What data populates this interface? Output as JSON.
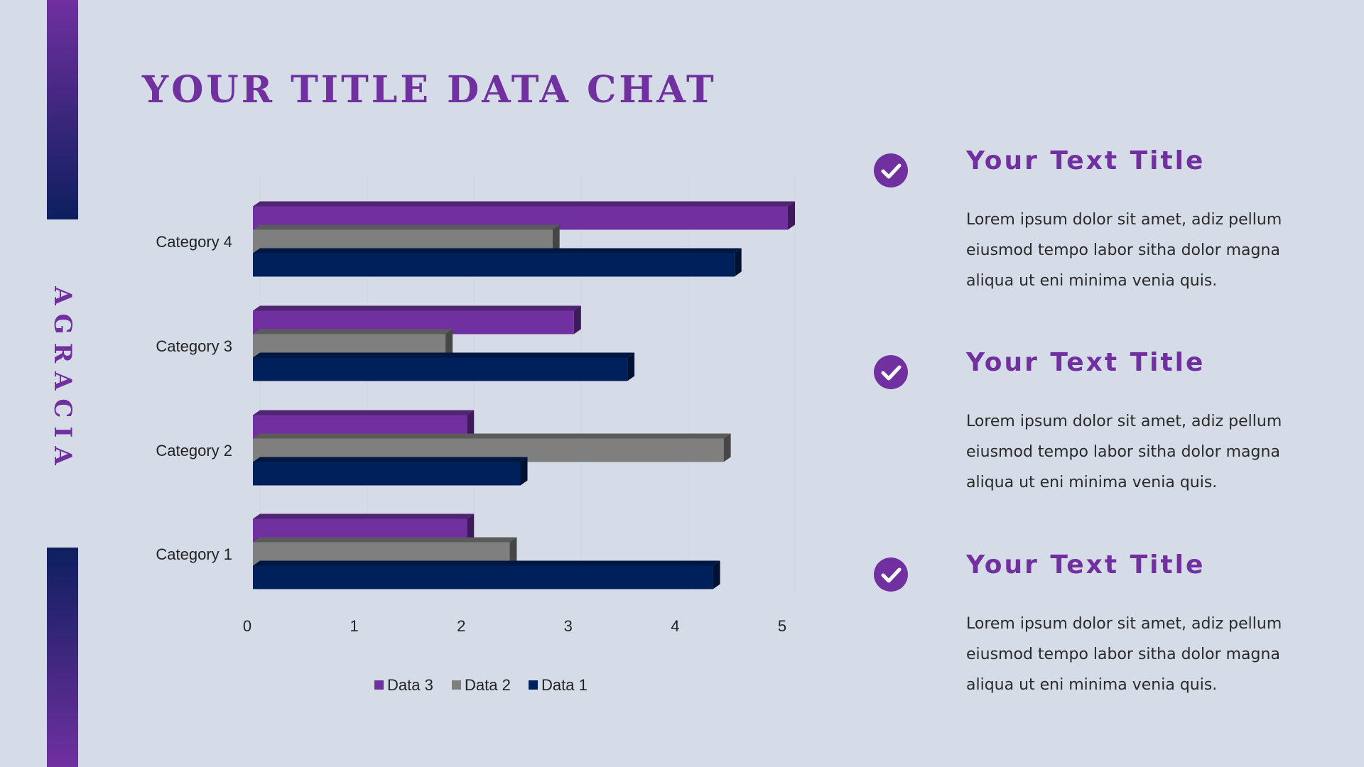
{
  "brand": "AGRACIA",
  "title": "YOUR TITLE DATA CHAT",
  "colors": {
    "accent": "#7030a0",
    "navy": "#0d1f5e",
    "background": "#d6dce7",
    "data1": "#00205b",
    "data2": "#7f7f7f",
    "data3": "#7030a0"
  },
  "chart_data": {
    "type": "bar",
    "orientation": "horizontal",
    "style": "3d",
    "categories": [
      "Category 1",
      "Category 2",
      "Category 3",
      "Category 4"
    ],
    "series": [
      {
        "name": "Data 3",
        "values": [
          2,
          2,
          3,
          5
        ]
      },
      {
        "name": "Data 2",
        "values": [
          2.4,
          4.4,
          1.8,
          2.8
        ]
      },
      {
        "name": "Data 1",
        "values": [
          4.3,
          2.5,
          3.5,
          4.5
        ]
      }
    ],
    "xticks": [
      "0",
      "1",
      "2",
      "3",
      "4",
      "5"
    ],
    "xlim": [
      0,
      5
    ],
    "legend_position": "bottom",
    "grid": true
  },
  "items": [
    {
      "icon": "check-circle-icon",
      "title": "Your Text Title",
      "body": "Lorem ipsum dolor sit amet, adiz pellum eiusmod tempo labor sitha dolor magna aliqua ut eni minima venia quis."
    },
    {
      "icon": "check-circle-icon",
      "title": "Your Text Title",
      "body": "Lorem ipsum dolor sit amet, adiz pellum eiusmod tempo labor sitha dolor magna aliqua ut eni minima venia quis."
    },
    {
      "icon": "check-circle-icon",
      "title": "Your Text Title",
      "body": "Lorem ipsum dolor sit amet, adiz pellum eiusmod tempo labor sitha dolor magna aliqua ut eni minima venia quis."
    }
  ]
}
